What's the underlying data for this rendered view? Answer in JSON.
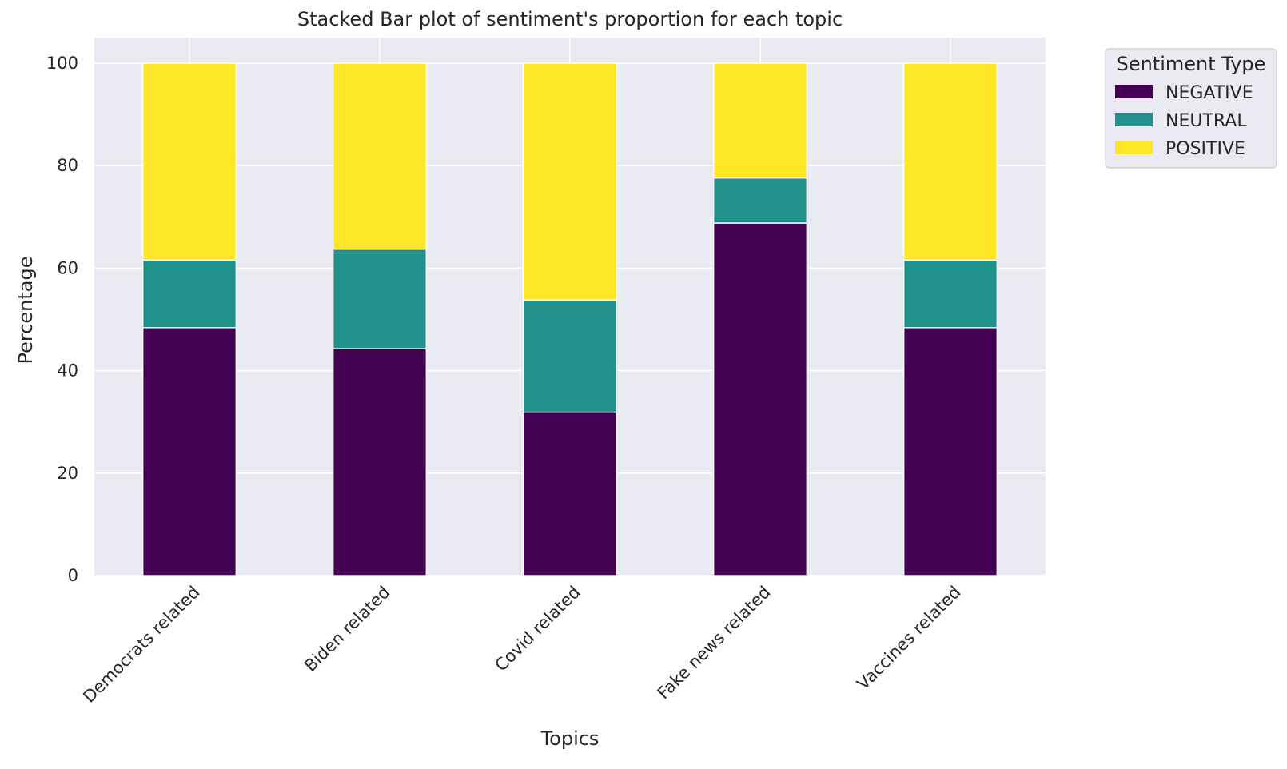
{
  "chart_data": {
    "type": "bar",
    "stacked": true,
    "title": "Stacked Bar plot of sentiment's proportion for each topic",
    "xlabel": "Topics",
    "ylabel": "Percentage",
    "ylim": [
      0,
      105
    ],
    "yticks": [
      0,
      20,
      40,
      60,
      80,
      100
    ],
    "categories": [
      "Democrats related",
      "Biden related",
      "Covid related",
      "Fake news related",
      "Vaccines related"
    ],
    "series": [
      {
        "name": "NEGATIVE",
        "color": "#440154",
        "values": [
          48.4,
          44.3,
          31.9,
          68.8,
          48.4
        ]
      },
      {
        "name": "NEUTRAL",
        "color": "#21918c",
        "values": [
          13.2,
          19.4,
          21.9,
          8.8,
          13.2
        ]
      },
      {
        "name": "POSITIVE",
        "color": "#fde725",
        "values": [
          38.4,
          36.3,
          46.2,
          22.4,
          38.4
        ]
      }
    ],
    "legend": {
      "title": "Sentiment Type",
      "placement": "outside-top-right"
    },
    "grid": true,
    "background": "#eaeaf2"
  }
}
